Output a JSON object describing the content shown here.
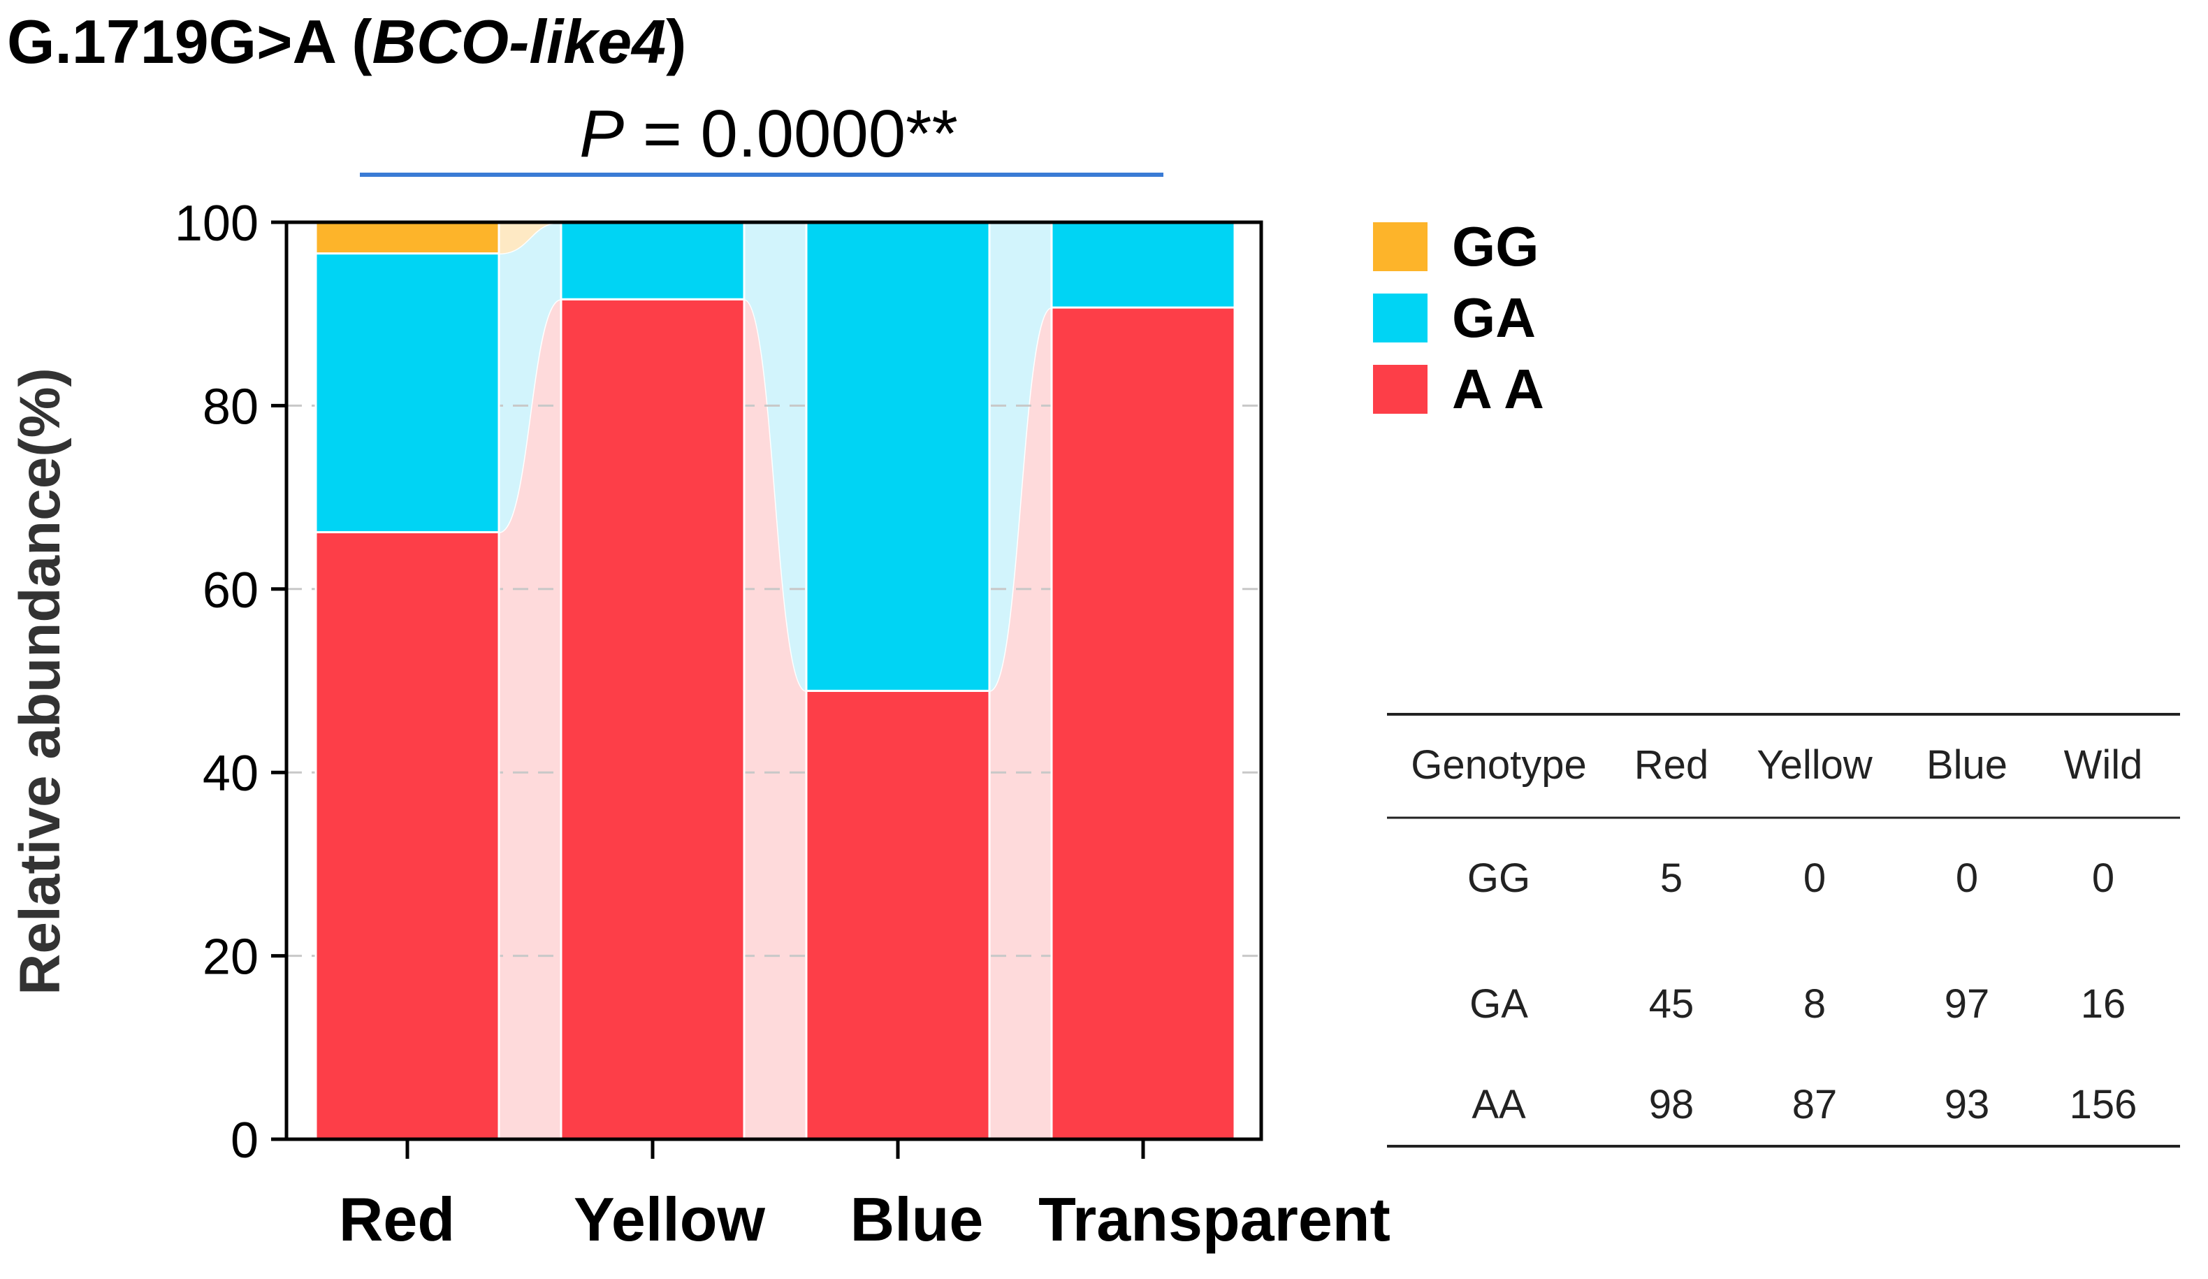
{
  "title": {
    "prefix": "G.1719G>A (",
    "gene": "BCO-like4",
    "suffix": ")"
  },
  "significance": {
    "p_symbol": "P",
    "p_rest": " = 0.0000**"
  },
  "colors": {
    "GG": "#FDB42A",
    "GA": "#00D4F4",
    "AA": "#FD3E48",
    "GG_band": "#FEE9C4",
    "GA_band": "#D2F4FC",
    "AA_band": "#FEDADB",
    "sig_line": "#3A7BD5"
  },
  "chart_data": {
    "type": "bar",
    "stacked": true,
    "title": "G.1719G>A (BCO-like4)",
    "xlabel": "",
    "ylabel": "Relative abundance(%)",
    "ylim": [
      0,
      100
    ],
    "yticks": [
      0,
      20,
      40,
      60,
      80,
      100
    ],
    "categories": [
      "Red",
      "Yellow",
      "Blue",
      "Transparent"
    ],
    "series": [
      {
        "name": "AA",
        "legend_label": "A A",
        "values": [
          66.2,
          91.6,
          48.9,
          90.7
        ]
      },
      {
        "name": "GA",
        "legend_label": "GA",
        "values": [
          30.4,
          8.4,
          51.1,
          9.3
        ]
      },
      {
        "name": "GG",
        "legend_label": "GG",
        "values": [
          3.4,
          0,
          0,
          0
        ]
      }
    ],
    "grid": "dashed horizontal",
    "legend": "right"
  },
  "table": {
    "headers": [
      "Genotype",
      "Red",
      "Yellow",
      "Blue",
      "Wild"
    ],
    "rows": [
      [
        "GG",
        "5",
        "0",
        "0",
        "0"
      ],
      [
        "GA",
        "45",
        "8",
        "97",
        "16"
      ],
      [
        "AA",
        "98",
        "87",
        "93",
        "156"
      ]
    ]
  }
}
